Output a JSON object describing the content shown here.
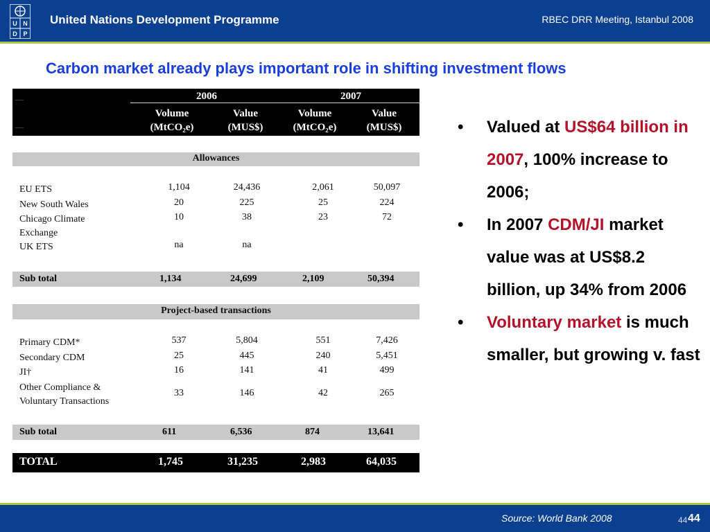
{
  "header": {
    "logo_letters": [
      "U",
      "N",
      "D",
      "P"
    ],
    "org_name": "United Nations Development Programme",
    "meeting": "RBEC DRR Meeting, Istanbul 2008"
  },
  "title": "Carbon market already plays important role in shifting investment flows",
  "table": {
    "years": [
      "2006",
      "2007"
    ],
    "columns": [
      {
        "line1": "Volume",
        "line2": "(MtCO₂e)"
      },
      {
        "line1": "Value",
        "line2": "(MUS$)"
      },
      {
        "line1": "Volume",
        "line2": "(MtCO₂e)"
      },
      {
        "line1": "Value",
        "line2": "(MUS$)"
      }
    ],
    "allowances_label": "Allowances",
    "allowances_rows": [
      {
        "name": "EU ETS",
        "v": [
          "1,104",
          "24,436",
          "2,061",
          "50,097"
        ]
      },
      {
        "name": "New South Wales",
        "v": [
          "20",
          "225",
          "25",
          "224"
        ]
      },
      {
        "name": "Chicago Climate",
        "v": [
          "10",
          "38",
          "23",
          "72"
        ]
      },
      {
        "name": "Exchange",
        "v": [
          "",
          "",
          "",
          ""
        ]
      },
      {
        "name": "UK ETS",
        "v": [
          "na",
          "na",
          "",
          ""
        ]
      }
    ],
    "allowances_sub": {
      "name": "Sub total",
      "v": [
        "1,134",
        "24,699",
        "2,109",
        "50,394"
      ]
    },
    "project_label": "Project-based transactions",
    "project_rows": [
      {
        "name": "Primary CDM*",
        "v": [
          "537",
          "5,804",
          "551",
          "7,426"
        ]
      },
      {
        "name": "Secondary CDM",
        "v": [
          "25",
          "445",
          "240",
          "5,451"
        ]
      },
      {
        "name": "JI†",
        "v": [
          "16",
          "141",
          "41",
          "499"
        ]
      },
      {
        "name": "Other Compliance &",
        "v": [
          "",
          "",
          "",
          ""
        ]
      },
      {
        "name": "Voluntary Transactions",
        "v": [
          "33",
          "146",
          "42",
          "265"
        ]
      }
    ],
    "project_sub": {
      "name": "Sub total",
      "v": [
        "611",
        "6,536",
        "874",
        "13,641"
      ]
    },
    "total": {
      "name": "TOTAL",
      "v": [
        "1,745",
        "31,235",
        "2,983",
        "64,035"
      ]
    }
  },
  "bullets": {
    "b1_a": "Valued at ",
    "b1_red": "US$64 billion in 2007",
    "b1_b": ", 100% increase to 2006;",
    "b2_a": "In 2007 ",
    "b2_red": "CDM/JI",
    "b2_b": " market value was at US$8.2 billion, up 34% from 2006",
    "b3_red": "Voluntary market",
    "b3_b": " is much smaller, but growing v. fast"
  },
  "footer": {
    "source": "Source: World Bank 2008",
    "page_small": "44",
    "page": "44"
  },
  "colors": {
    "brand_blue": "#0b3f8f",
    "accent_green": "#a9c63f",
    "title_blue": "#1a3edb",
    "highlight_red": "#b3122b"
  }
}
